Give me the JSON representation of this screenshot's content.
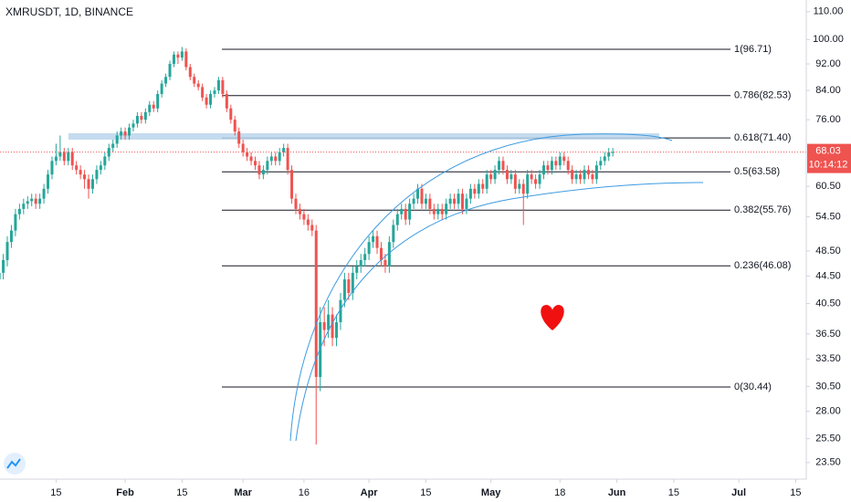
{
  "chart_data": {
    "type": "candlestick",
    "title": "XMRUSDT, 1D, BINANCE",
    "log_scale": true,
    "up_color": "#26a69a",
    "down_color": "#ef5350",
    "xlim": [
      0.2,
      198.6
    ],
    "xticks": [
      {
        "value": 14,
        "label": "15"
      },
      {
        "value": 31,
        "label": "Feb"
      },
      {
        "value": 45,
        "label": "15"
      },
      {
        "value": 60,
        "label": "Mar"
      },
      {
        "value": 75,
        "label": "16"
      },
      {
        "value": 91,
        "label": "Apr"
      },
      {
        "value": 105,
        "label": "15"
      },
      {
        "value": 121,
        "label": "May"
      },
      {
        "value": 138,
        "label": "18"
      },
      {
        "value": 152,
        "label": "Jun"
      },
      {
        "value": 166,
        "label": "15"
      },
      {
        "value": 182,
        "label": "Jul"
      },
      {
        "value": 196,
        "label": "15"
      }
    ],
    "ylim": [
      22.2,
      114.5
    ],
    "yticks": [
      {
        "value": 110,
        "label": "110.00"
      },
      {
        "value": 100,
        "label": "100.00"
      },
      {
        "value": 92,
        "label": "92.00"
      },
      {
        "value": 84,
        "label": "84.00"
      },
      {
        "value": 76,
        "label": "76.00"
      },
      {
        "value": 60.5,
        "label": "60.50"
      },
      {
        "value": 54.5,
        "label": "54.50"
      },
      {
        "value": 48.5,
        "label": "48.50"
      },
      {
        "value": 44.5,
        "label": "44.50"
      },
      {
        "value": 40.5,
        "label": "40.50"
      },
      {
        "value": 36.5,
        "label": "36.50"
      },
      {
        "value": 33.5,
        "label": "33.50"
      },
      {
        "value": 30.5,
        "label": "30.50"
      },
      {
        "value": 28,
        "label": "28.00"
      },
      {
        "value": 25.5,
        "label": "25.50"
      },
      {
        "value": 23.5,
        "label": "23.50"
      }
    ],
    "last_price": 68.03,
    "countdown": "10:14:12",
    "fib_levels": [
      {
        "value": 96.71,
        "label": "1(96.71)"
      },
      {
        "value": 82.53,
        "label": "0.786(82.53)"
      },
      {
        "value": 71.4,
        "label": "0.618(71.40)"
      },
      {
        "value": 63.58,
        "label": "0.5(63.58)"
      },
      {
        "value": 55.76,
        "label": "0.382(55.76)"
      },
      {
        "value": 46.08,
        "label": "0.236(46.08)"
      },
      {
        "value": 30.44,
        "label": "0(30.44)"
      }
    ],
    "x": [
      0,
      1,
      2,
      3,
      4,
      5,
      6,
      7,
      8,
      9,
      10,
      11,
      12,
      13,
      14,
      15,
      16,
      17,
      18,
      19,
      20,
      21,
      22,
      23,
      24,
      25,
      26,
      27,
      28,
      29,
      30,
      31,
      32,
      33,
      34,
      35,
      36,
      37,
      38,
      39,
      40,
      41,
      42,
      43,
      44,
      45,
      46,
      47,
      48,
      49,
      50,
      51,
      52,
      53,
      54,
      55,
      56,
      57,
      58,
      59,
      60,
      61,
      62,
      63,
      64,
      65,
      66,
      67,
      68,
      69,
      70,
      71,
      72,
      73,
      74,
      75,
      76,
      77,
      78,
      79,
      80,
      81,
      82,
      83,
      84,
      85,
      86,
      87,
      88,
      89,
      90,
      91,
      92,
      93,
      94,
      95,
      96,
      97,
      98,
      99,
      100,
      101,
      102,
      103,
      104,
      105,
      106,
      107,
      108,
      109,
      110,
      111,
      112,
      113,
      114,
      115,
      116,
      117,
      118,
      119,
      120,
      121,
      122,
      123,
      124,
      125,
      126,
      127,
      128,
      129,
      130,
      131,
      132,
      133,
      134,
      135,
      136,
      137,
      138,
      139,
      140,
      141,
      142,
      143,
      144,
      145,
      146,
      147,
      148,
      149,
      150,
      151
    ],
    "ohlc": [
      [
        44,
        46,
        43,
        45
      ],
      [
        45,
        48,
        44,
        47
      ],
      [
        47,
        51,
        46,
        50
      ],
      [
        50,
        53,
        49,
        52
      ],
      [
        52,
        56,
        51,
        55
      ],
      [
        55,
        57,
        54,
        56
      ],
      [
        56,
        58,
        55,
        57
      ],
      [
        57,
        58.5,
        56,
        57.5
      ],
      [
        57.5,
        59,
        56.5,
        58
      ],
      [
        58,
        59,
        56,
        57
      ],
      [
        57,
        59,
        56,
        58
      ],
      [
        58,
        61,
        57,
        60
      ],
      [
        60,
        64,
        59,
        63
      ],
      [
        63,
        67,
        62,
        66
      ],
      [
        66,
        70,
        65,
        67
      ],
      [
        67,
        72,
        66,
        68
      ],
      [
        68,
        69,
        65,
        66
      ],
      [
        66,
        69,
        65,
        68
      ],
      [
        68,
        69,
        64,
        65
      ],
      [
        65,
        66,
        63,
        64
      ],
      [
        64,
        65,
        62,
        63
      ],
      [
        63,
        64,
        60,
        62
      ],
      [
        62,
        63,
        58,
        60
      ],
      [
        60,
        63,
        59,
        62
      ],
      [
        62,
        65,
        61,
        64
      ],
      [
        64,
        66,
        63,
        65
      ],
      [
        65,
        68,
        64,
        67
      ],
      [
        67,
        70,
        66,
        69
      ],
      [
        69,
        71,
        68,
        70
      ],
      [
        70,
        73,
        69,
        72
      ],
      [
        72,
        74,
        71,
        73
      ],
      [
        73,
        74,
        71,
        72
      ],
      [
        72,
        75,
        71,
        74
      ],
      [
        74,
        76,
        73,
        75
      ],
      [
        75,
        78,
        74,
        77
      ],
      [
        77,
        78,
        75,
        76
      ],
      [
        76,
        79,
        75,
        78
      ],
      [
        78,
        81,
        77,
        80
      ],
      [
        80,
        81,
        78,
        79
      ],
      [
        79,
        84,
        78,
        83
      ],
      [
        83,
        87,
        82,
        86
      ],
      [
        86,
        89,
        85,
        88
      ],
      [
        88,
        93,
        87,
        92
      ],
      [
        92,
        96,
        91,
        95
      ],
      [
        95,
        96,
        92,
        94
      ],
      [
        94,
        97.5,
        93,
        96
      ],
      [
        96,
        97,
        90,
        91
      ],
      [
        91,
        92,
        87,
        88
      ],
      [
        88,
        89,
        85,
        86
      ],
      [
        86,
        87,
        84,
        85
      ],
      [
        85,
        86,
        81,
        82
      ],
      [
        82,
        83,
        79,
        80
      ],
      [
        80,
        84,
        79,
        83
      ],
      [
        83,
        85,
        82,
        84
      ],
      [
        84,
        88,
        83,
        87
      ],
      [
        87,
        88,
        82,
        83
      ],
      [
        83,
        84,
        78,
        79
      ],
      [
        79,
        80,
        75,
        76
      ],
      [
        76,
        77,
        72,
        73
      ],
      [
        73,
        74,
        69,
        70
      ],
      [
        70,
        71,
        67,
        68
      ],
      [
        68,
        69,
        66,
        67
      ],
      [
        67,
        68,
        65,
        66
      ],
      [
        66,
        67,
        64,
        65
      ],
      [
        65,
        66,
        62,
        63
      ],
      [
        63,
        65,
        62,
        64
      ],
      [
        64,
        67,
        63,
        66
      ],
      [
        66,
        68,
        65,
        67
      ],
      [
        67,
        68,
        65,
        66
      ],
      [
        66,
        69,
        65,
        68
      ],
      [
        68,
        70,
        67,
        69
      ],
      [
        69,
        70,
        63,
        64
      ],
      [
        64,
        65,
        57,
        58
      ],
      [
        58,
        59,
        55,
        56
      ],
      [
        56,
        57,
        54,
        55
      ],
      [
        55,
        56,
        53,
        54
      ],
      [
        54,
        55,
        52,
        53
      ],
      [
        53,
        54,
        51,
        52
      ],
      [
        52,
        53,
        25,
        31.5
      ],
      [
        31.5,
        40,
        30,
        38
      ],
      [
        38,
        40,
        35,
        37
      ],
      [
        37,
        41,
        36,
        39
      ],
      [
        39,
        40,
        35,
        36
      ],
      [
        36,
        39,
        35,
        38
      ],
      [
        38,
        42,
        37,
        41
      ],
      [
        41,
        45,
        40,
        44
      ],
      [
        44,
        45,
        41,
        42
      ],
      [
        42,
        46,
        41,
        45
      ],
      [
        45,
        47,
        44,
        46
      ],
      [
        46,
        48,
        45,
        47
      ],
      [
        47,
        49,
        46,
        48
      ],
      [
        48,
        51,
        47,
        50
      ],
      [
        50,
        52,
        49,
        51
      ],
      [
        51,
        52,
        48,
        49
      ],
      [
        49,
        50,
        46,
        47
      ],
      [
        47,
        48,
        45,
        46
      ],
      [
        46,
        51,
        45,
        50
      ],
      [
        50,
        54,
        49,
        53
      ],
      [
        53,
        56,
        52,
        55
      ],
      [
        55,
        57,
        54,
        56
      ],
      [
        56,
        57,
        53,
        54
      ],
      [
        54,
        58,
        53,
        57
      ],
      [
        57,
        59,
        56,
        58
      ],
      [
        58,
        61,
        57,
        60
      ],
      [
        60,
        61,
        56,
        57
      ],
      [
        57,
        59,
        56,
        58
      ],
      [
        58,
        59,
        55,
        56
      ],
      [
        56,
        57,
        54,
        55
      ],
      [
        55,
        57,
        54,
        56
      ],
      [
        56,
        57,
        54,
        55
      ],
      [
        55,
        58,
        54,
        57
      ],
      [
        57,
        59,
        56,
        58
      ],
      [
        58,
        59,
        56,
        57
      ],
      [
        57,
        60,
        56,
        59
      ],
      [
        59,
        60,
        55,
        56
      ],
      [
        56,
        59,
        55,
        58
      ],
      [
        58,
        61,
        57,
        60
      ],
      [
        60,
        61,
        58,
        59
      ],
      [
        59,
        62,
        58,
        61
      ],
      [
        61,
        62,
        59,
        60
      ],
      [
        60,
        64,
        59,
        63
      ],
      [
        63,
        64,
        61,
        62
      ],
      [
        62,
        65,
        61,
        64
      ],
      [
        64,
        67,
        63,
        66
      ],
      [
        66,
        67,
        63,
        64
      ],
      [
        64,
        65,
        61,
        62
      ],
      [
        62,
        64,
        61,
        63
      ],
      [
        63,
        64,
        59,
        60
      ],
      [
        60,
        62,
        59,
        61
      ],
      [
        61,
        62,
        53,
        59
      ],
      [
        59,
        64,
        58,
        63
      ],
      [
        63,
        64,
        61,
        62
      ],
      [
        62,
        63,
        60,
        61
      ],
      [
        61,
        64,
        60,
        63
      ],
      [
        63,
        66,
        62,
        65
      ],
      [
        65,
        66,
        63,
        64
      ],
      [
        64,
        67,
        63,
        66
      ],
      [
        66,
        67,
        64,
        65
      ],
      [
        65,
        68,
        64,
        67
      ],
      [
        67,
        68,
        65,
        66
      ],
      [
        66,
        67,
        63,
        64
      ],
      [
        64,
        65,
        61,
        62
      ],
      [
        62,
        64,
        61,
        63
      ],
      [
        63,
        64,
        61,
        62
      ],
      [
        62,
        65,
        61,
        64
      ],
      [
        64,
        65,
        62,
        63
      ],
      [
        63,
        64,
        61,
        62
      ],
      [
        62,
        66,
        61,
        65
      ],
      [
        65,
        67,
        64,
        66
      ],
      [
        66,
        68,
        65,
        67
      ],
      [
        67,
        69,
        66,
        68
      ],
      [
        68,
        69,
        67,
        68.03
      ]
    ]
  }
}
